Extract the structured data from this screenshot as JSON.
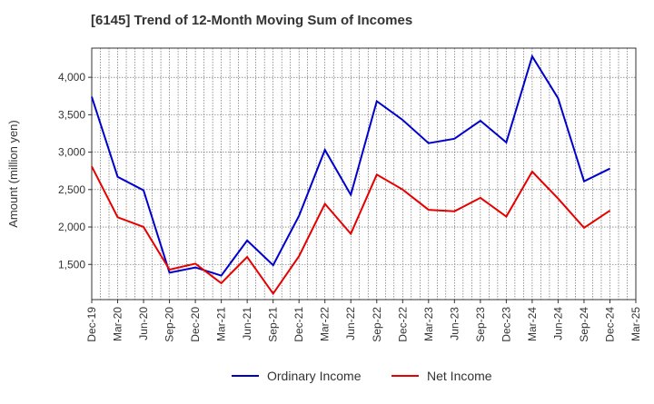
{
  "chart_data": {
    "type": "line",
    "title": "[6145]  Trend of 12-Month Moving Sum of Incomes",
    "xlabel": "",
    "ylabel": "Amount (million yen)",
    "ylim": [
      1030,
      4390
    ],
    "yticks": [
      1500,
      2000,
      2500,
      3000,
      3500,
      4000
    ],
    "ytick_labels": [
      "1,500",
      "2,000",
      "2,500",
      "3,000",
      "3,500",
      "4,000"
    ],
    "xtick_labels": [
      "Dec-19",
      "Mar-20",
      "Jun-20",
      "Sep-20",
      "Dec-20",
      "Mar-21",
      "Jun-21",
      "Sep-21",
      "Dec-21",
      "Mar-22",
      "Jun-22",
      "Sep-22",
      "Dec-22",
      "Mar-23",
      "Jun-23",
      "Sep-23",
      "Dec-23",
      "Mar-24",
      "Jun-24",
      "Sep-24",
      "Dec-24",
      "Mar-25"
    ],
    "grid": true,
    "legend_position": "bottom-center",
    "series": [
      {
        "name": "Ordinary Income",
        "color": "#0000cc",
        "values": [
          3740,
          2670,
          2490,
          1390,
          1460,
          1350,
          1820,
          1490,
          2150,
          3030,
          2430,
          3680,
          3430,
          3120,
          3180,
          3420,
          3130,
          4280,
          3720,
          2610,
          2780,
          null
        ]
      },
      {
        "name": "Net Income",
        "color": "#e60000",
        "values": [
          2810,
          2130,
          2000,
          1430,
          1510,
          1250,
          1600,
          1110,
          1610,
          2310,
          1910,
          2700,
          2500,
          2230,
          2210,
          2390,
          2140,
          2740,
          2380,
          1990,
          2220,
          null
        ]
      }
    ]
  }
}
